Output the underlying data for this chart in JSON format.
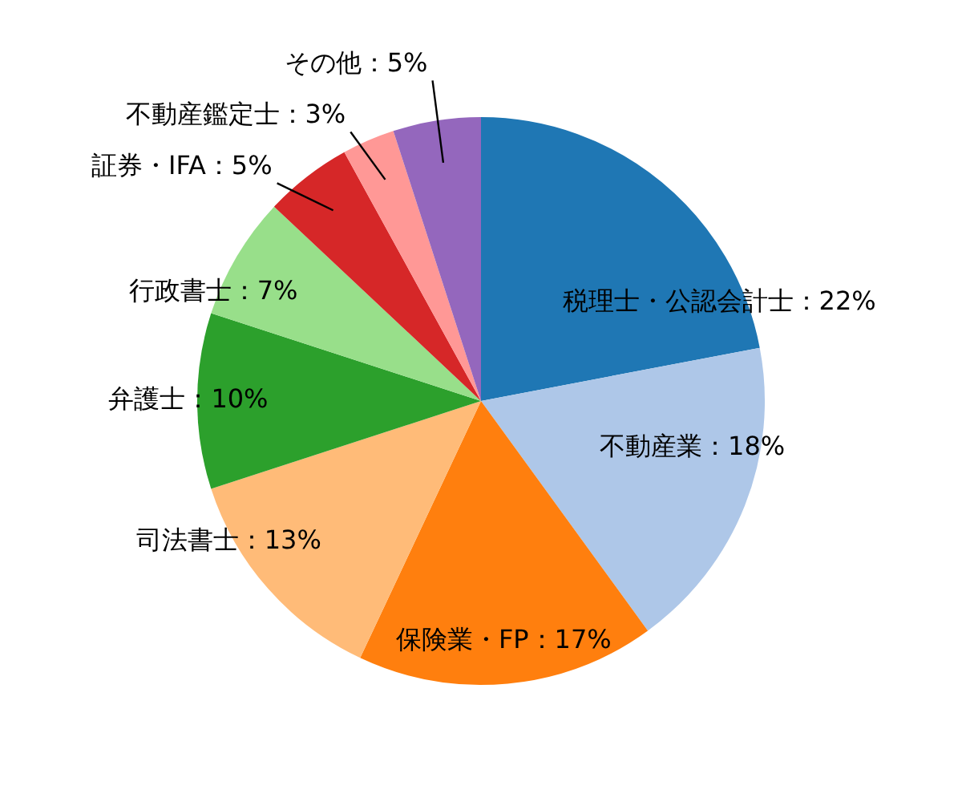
{
  "chart_data": {
    "type": "pie",
    "categories": [
      "税理士・公認会計士",
      "不動産業",
      "保険業・FP",
      "司法書士",
      "弁護士",
      "行政書士",
      "証券・IFA",
      "不動産鑑定士",
      "その他"
    ],
    "values": [
      22,
      18,
      17,
      13,
      10,
      7,
      5,
      3,
      5
    ],
    "colors": [
      "#1f77b4",
      "#aec7e8",
      "#ff7f0e",
      "#ffbb78",
      "#2ca02c",
      "#98df8a",
      "#d62728",
      "#ff9896",
      "#9467bd"
    ],
    "value_labels": [
      "：22%",
      "：18%",
      "：17%",
      "：13%",
      "：10%",
      "：7%",
      "：5%",
      "：3%",
      "：5%"
    ],
    "legend": false
  }
}
